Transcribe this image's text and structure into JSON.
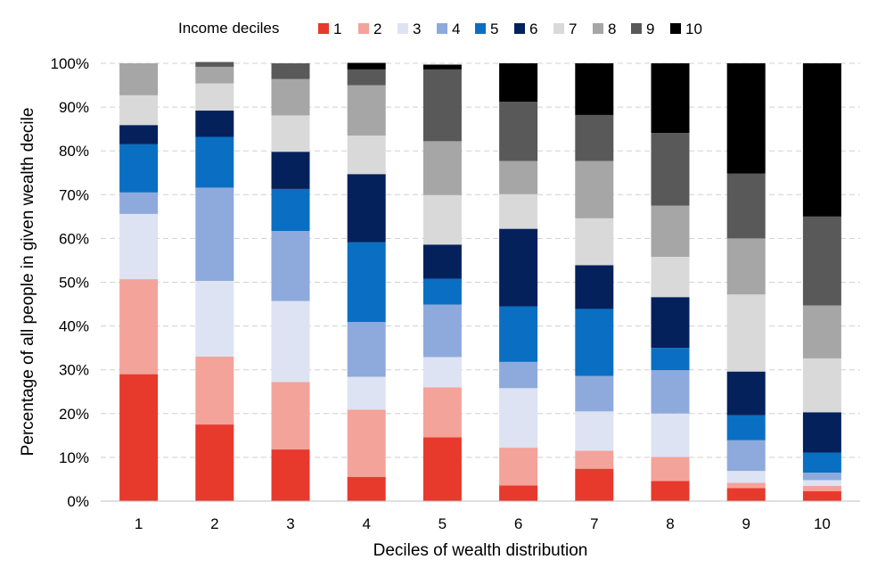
{
  "chart_data": {
    "type": "bar",
    "stacked": true,
    "title": "",
    "xlabel": "Deciles of wealth distribution",
    "ylabel": "Percentage of all people in given wealth decile",
    "ylim": [
      0,
      100
    ],
    "yticks": [
      "0%",
      "10%",
      "20%",
      "30%",
      "40%",
      "50%",
      "60%",
      "70%",
      "80%",
      "90%",
      "100%"
    ],
    "grid": "horizontal-dashed",
    "legend_title": "Income deciles",
    "legend_position": "top",
    "categories": [
      "1",
      "2",
      "3",
      "4",
      "5",
      "6",
      "7",
      "8",
      "9",
      "10"
    ],
    "series": [
      {
        "name": "1",
        "color": "#e8392d",
        "values": [
          29,
          17.5,
          11.8,
          5.5,
          14.6,
          3.6,
          7.4,
          4.6,
          3,
          2.3
        ]
      },
      {
        "name": "2",
        "color": "#f4a39a",
        "values": [
          21.7,
          15.5,
          15.4,
          15.4,
          11.4,
          8.6,
          4.1,
          5.5,
          1.2,
          1.2
        ]
      },
      {
        "name": "3",
        "color": "#dde3f3",
        "values": [
          14.9,
          17.3,
          18.5,
          7.5,
          6.9,
          13.6,
          9,
          9.9,
          2.7,
          1.3
        ]
      },
      {
        "name": "4",
        "color": "#8eaadc",
        "values": [
          4.9,
          21.3,
          16,
          12.5,
          12,
          6,
          8.1,
          9.9,
          7,
          1.7
        ]
      },
      {
        "name": "5",
        "color": "#0a6fc2",
        "values": [
          11,
          11.6,
          9.6,
          18.2,
          5.9,
          12.7,
          15.3,
          5.1,
          5.7,
          4.6
        ]
      },
      {
        "name": "6",
        "color": "#05215c",
        "values": [
          4.4,
          6,
          8.5,
          15.6,
          7.8,
          17.7,
          10,
          11.6,
          10,
          9.2
        ]
      },
      {
        "name": "7",
        "color": "#d9d9d9",
        "values": [
          6.8,
          6.2,
          8.3,
          8.8,
          11.3,
          7.9,
          10.7,
          9.2,
          17.6,
          12.3
        ]
      },
      {
        "name": "8",
        "color": "#a6a6a6",
        "values": [
          7.3,
          3.8,
          8.3,
          11.5,
          12.3,
          7.6,
          13.1,
          11.7,
          12.8,
          12.1
        ]
      },
      {
        "name": "9",
        "color": "#595959",
        "values": [
          0,
          1.1,
          3.6,
          3.6,
          16.4,
          13.5,
          10.5,
          16.6,
          14.8,
          20.3
        ]
      },
      {
        "name": "10",
        "color": "#000000",
        "values": [
          0,
          0,
          0,
          1.5,
          1.1,
          8.8,
          11.8,
          15.9,
          25.2,
          35
        ]
      }
    ]
  }
}
